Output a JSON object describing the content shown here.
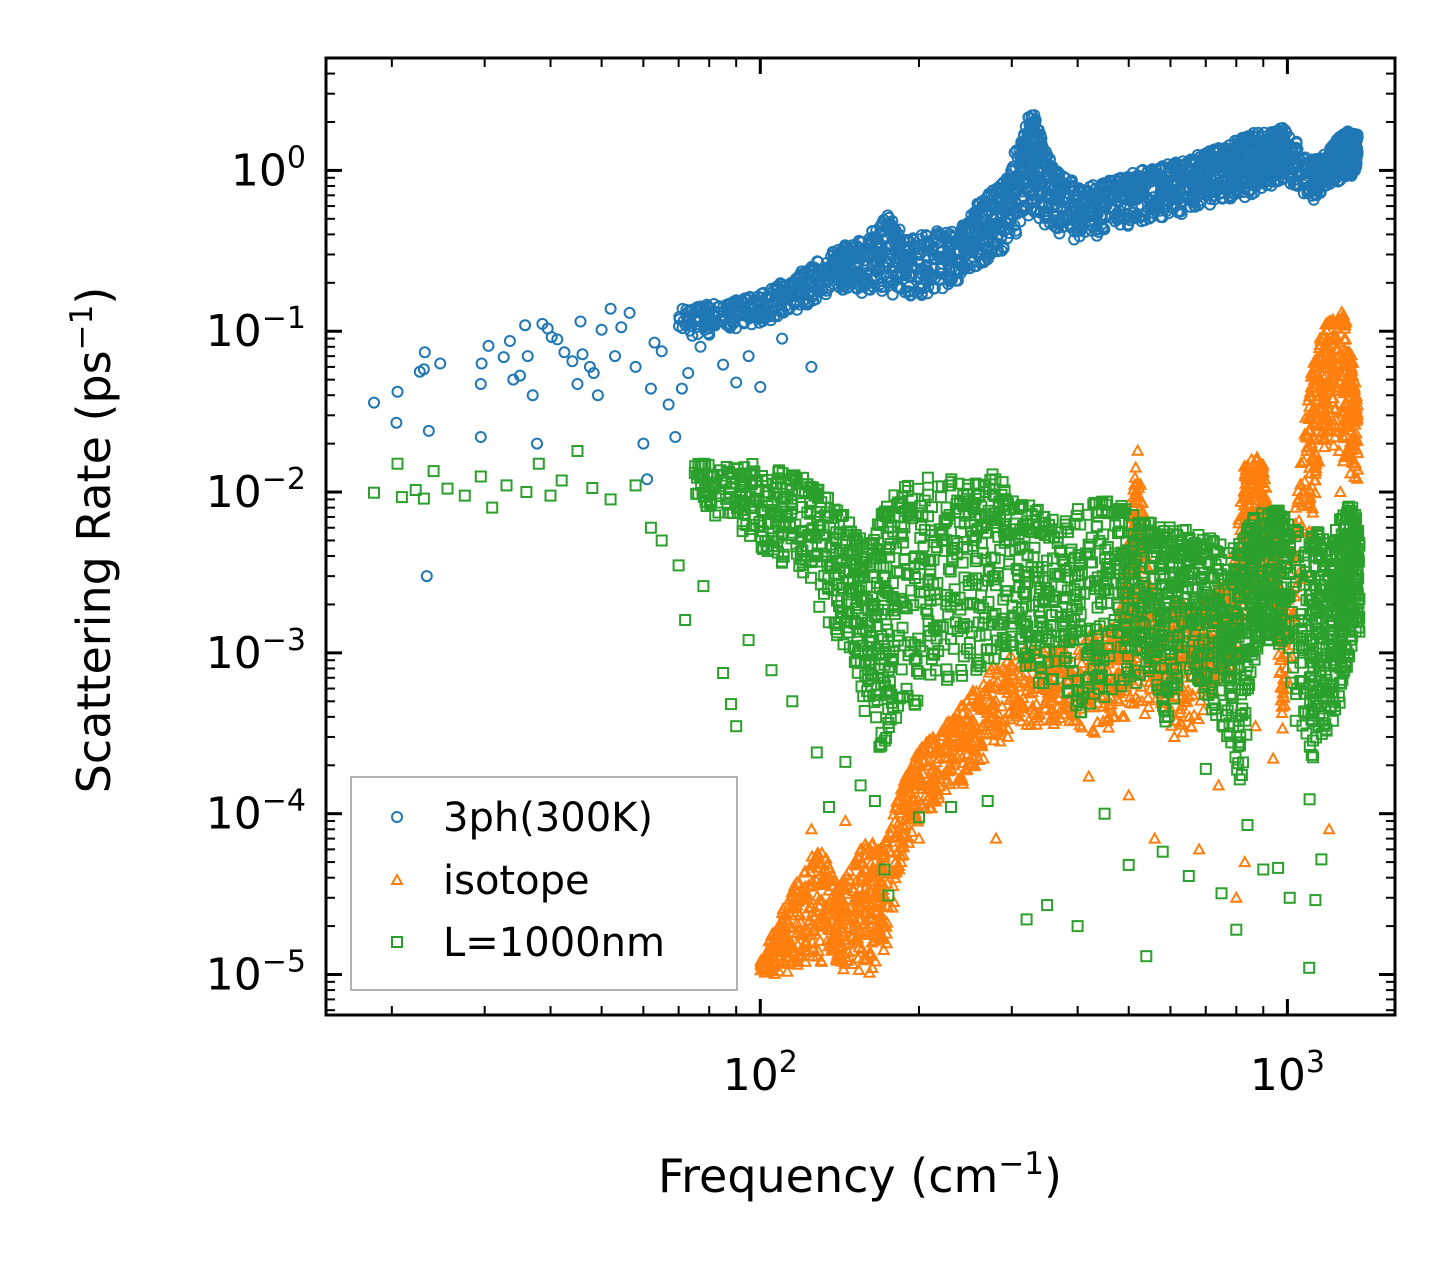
{
  "chart_data": {
    "type": "scatter",
    "title": "",
    "xlabel": "Frequency (cm",
    "xlabel_sup": "−1",
    "xlabel_close": ")",
    "ylabel": "Scattering Rate (ps",
    "ylabel_sup": "−1",
    "ylabel_close": ")",
    "xscale": "log",
    "yscale": "log",
    "xlim": [
      15,
      1600
    ],
    "ylim": [
      5.6e-06,
      5.0
    ],
    "x_ticks": [
      {
        "value": 100,
        "base": "10",
        "exp": "2"
      },
      {
        "value": 1000,
        "base": "10",
        "exp": "3"
      }
    ],
    "y_ticks": [
      {
        "value": 1e-05,
        "base": "10",
        "exp": "−5"
      },
      {
        "value": 0.0001,
        "base": "10",
        "exp": "−4"
      },
      {
        "value": 0.001,
        "base": "10",
        "exp": "−3"
      },
      {
        "value": 0.01,
        "base": "10",
        "exp": "−2"
      },
      {
        "value": 0.1,
        "base": "10",
        "exp": "−1"
      },
      {
        "value": 1,
        "base": "10",
        "exp": "0"
      }
    ],
    "legend_position": "lower-left",
    "series": [
      {
        "name": "3ph(300K)",
        "marker": "circle",
        "color": "#1f77b4",
        "points": [
          [
            18.5,
            0.036
          ],
          [
            20.5,
            0.042
          ],
          [
            20.4,
            0.027
          ],
          [
            22.6,
            0.056
          ],
          [
            23.1,
            0.074
          ],
          [
            23.0,
            0.058
          ],
          [
            23.5,
            0.024
          ],
          [
            24.7,
            0.063
          ],
          [
            29.6,
            0.063
          ],
          [
            29.5,
            0.047
          ],
          [
            29.5,
            0.022
          ],
          [
            30.5,
            0.081
          ],
          [
            32.6,
            0.069
          ],
          [
            33.5,
            0.087
          ],
          [
            34.0,
            0.05
          ],
          [
            35.0,
            0.053
          ],
          [
            35.8,
            0.109
          ],
          [
            36.2,
            0.07
          ],
          [
            37.0,
            0.04
          ],
          [
            37.7,
            0.02
          ],
          [
            38.6,
            0.111
          ],
          [
            39.5,
            0.104
          ],
          [
            40.2,
            0.092
          ],
          [
            41.2,
            0.089
          ],
          [
            42.5,
            0.074
          ],
          [
            44.0,
            0.065
          ],
          [
            45.0,
            0.047
          ],
          [
            45.6,
            0.115
          ],
          [
            46.0,
            0.072
          ],
          [
            47.5,
            0.06
          ],
          [
            48.3,
            0.055
          ],
          [
            49.2,
            0.04
          ],
          [
            50.0,
            0.102
          ],
          [
            52.0,
            0.138
          ],
          [
            53.0,
            0.07
          ],
          [
            54.5,
            0.106
          ],
          [
            56.5,
            0.13
          ],
          [
            58.0,
            0.06
          ],
          [
            60.0,
            0.02
          ],
          [
            61.0,
            0.012
          ],
          [
            62.0,
            0.044
          ],
          [
            63.0,
            0.085
          ],
          [
            65.0,
            0.075
          ],
          [
            67.0,
            0.035
          ],
          [
            69.0,
            0.022
          ],
          [
            71.0,
            0.044
          ],
          [
            73.0,
            0.055
          ],
          [
            77.0,
            0.08
          ],
          [
            80.0,
            0.095
          ],
          [
            85.0,
            0.062
          ],
          [
            90.0,
            0.048
          ],
          [
            95.0,
            0.07
          ],
          [
            100.0,
            0.045
          ],
          [
            110.0,
            0.09
          ],
          [
            125.0,
            0.06
          ],
          [
            23.3,
            0.003
          ]
        ],
        "bands": [
          [
            55,
            0.08,
            0.12
          ],
          [
            70,
            0.09,
            0.14
          ],
          [
            85,
            0.1,
            0.15
          ],
          [
            100,
            0.11,
            0.17
          ],
          [
            115,
            0.13,
            0.22
          ],
          [
            130,
            0.16,
            0.28
          ],
          [
            145,
            0.18,
            0.35
          ],
          [
            160,
            0.17,
            0.4
          ],
          [
            175,
            0.17,
            0.55
          ],
          [
            190,
            0.16,
            0.38
          ],
          [
            210,
            0.17,
            0.42
          ],
          [
            235,
            0.2,
            0.42
          ],
          [
            255,
            0.25,
            0.6
          ],
          [
            275,
            0.28,
            0.75
          ],
          [
            295,
            0.32,
            0.95
          ],
          [
            315,
            0.45,
            1.9
          ],
          [
            330,
            0.55,
            2.4
          ],
          [
            345,
            0.45,
            1.4
          ],
          [
            370,
            0.4,
            0.95
          ],
          [
            410,
            0.35,
            0.8
          ],
          [
            450,
            0.4,
            0.85
          ],
          [
            500,
            0.45,
            0.95
          ],
          [
            550,
            0.5,
            1.05
          ],
          [
            600,
            0.5,
            1.1
          ],
          [
            650,
            0.55,
            1.2
          ],
          [
            700,
            0.6,
            1.3
          ],
          [
            750,
            0.62,
            1.4
          ],
          [
            800,
            0.65,
            1.55
          ],
          [
            850,
            0.7,
            1.7
          ],
          [
            900,
            0.75,
            1.75
          ],
          [
            950,
            0.8,
            1.8
          ],
          [
            990,
            0.85,
            1.85
          ],
          [
            1120,
            0.65,
            1.15
          ],
          [
            1180,
            0.75,
            1.3
          ],
          [
            1250,
            0.85,
            1.6
          ],
          [
            1300,
            0.9,
            1.75
          ],
          [
            1360,
            0.95,
            1.7
          ]
        ]
      },
      {
        "name": "isotope",
        "marker": "triangle",
        "color": "#ff7f0e",
        "points": [
          [
            125,
            8e-05
          ],
          [
            145,
            9e-05
          ],
          [
            155,
            6e-05
          ],
          [
            160,
            4e-05
          ],
          [
            170,
            3e-05
          ],
          [
            185,
            5e-05
          ],
          [
            200,
            7e-05
          ],
          [
            230,
            0.00035
          ],
          [
            265,
            0.00022
          ],
          [
            280,
            7e-05
          ],
          [
            420,
            0.00017
          ],
          [
            480,
            0.0005
          ],
          [
            500,
            0.00013
          ],
          [
            560,
            7e-05
          ],
          [
            610,
            0.0003
          ],
          [
            680,
            6e-05
          ],
          [
            740,
            0.00015
          ],
          [
            800,
            3e-05
          ],
          [
            830,
            5e-05
          ],
          [
            870,
            0.00035
          ],
          [
            940,
            0.00022
          ],
          [
            1090,
            0.019
          ],
          [
            1130,
            0.013
          ],
          [
            1200,
            8e-05
          ],
          [
            1260,
            0.01
          ]
        ],
        "bands": [
          [
            100,
            1e-05,
            1.2e-05
          ],
          [
            110,
            1e-05,
            2.5e-05
          ],
          [
            120,
            1.1e-05,
            4.5e-05
          ],
          [
            130,
            1.2e-05,
            6.5e-05
          ],
          [
            140,
            1.1e-05,
            3.5e-05
          ],
          [
            150,
            1e-05,
            5e-05
          ],
          [
            160,
            1e-05,
            7e-05
          ],
          [
            170,
            1e-05,
            6e-05
          ],
          [
            185,
            5e-05,
            0.00015
          ],
          [
            200,
            9e-05,
            0.00025
          ],
          [
            220,
            0.00012,
            0.00035
          ],
          [
            245,
            0.00015,
            0.0005
          ],
          [
            270,
            0.00025,
            0.0008
          ],
          [
            300,
            0.0003,
            0.001
          ],
          [
            340,
            0.00035,
            0.0011
          ],
          [
            380,
            0.00035,
            0.0012
          ],
          [
            430,
            0.0003,
            0.0013
          ],
          [
            480,
            0.00035,
            0.0016
          ],
          [
            510,
            0.0004,
            0.011
          ],
          [
            520,
            0.0003,
            0.019
          ],
          [
            560,
            0.0005,
            0.0014
          ],
          [
            620,
            0.0003,
            0.0022
          ],
          [
            670,
            0.00035,
            0.0018
          ],
          [
            720,
            0.0005,
            0.0025
          ],
          [
            780,
            0.0007,
            0.0028
          ],
          [
            830,
            0.002,
            0.015
          ],
          [
            860,
            0.0025,
            0.018
          ],
          [
            900,
            0.003,
            0.015
          ],
          [
            940,
            0.004,
            0.006
          ],
          [
            980,
            0.0003,
            0.0015
          ],
          [
            1100,
            0.005,
            0.05
          ],
          [
            1150,
            0.015,
            0.09
          ],
          [
            1200,
            0.02,
            0.13
          ],
          [
            1280,
            0.015,
            0.15
          ],
          [
            1320,
            0.012,
            0.08
          ],
          [
            1360,
            0.01,
            0.04
          ]
        ]
      },
      {
        "name": "L=1000nm",
        "marker": "square",
        "color": "#2ca02c",
        "points": [
          [
            18.5,
            0.0099
          ],
          [
            20.5,
            0.015
          ],
          [
            20.9,
            0.0093
          ],
          [
            22.2,
            0.0103
          ],
          [
            23.0,
            0.0091
          ],
          [
            24.0,
            0.0135
          ],
          [
            25.5,
            0.0105
          ],
          [
            27.5,
            0.0095
          ],
          [
            29.5,
            0.0125
          ],
          [
            31.0,
            0.008
          ],
          [
            33.0,
            0.011
          ],
          [
            36.0,
            0.01
          ],
          [
            38.0,
            0.015
          ],
          [
            40.0,
            0.0095
          ],
          [
            42.0,
            0.0118
          ],
          [
            45.0,
            0.018
          ],
          [
            48.0,
            0.0106
          ],
          [
            52.0,
            0.009
          ],
          [
            58.0,
            0.011
          ],
          [
            62.0,
            0.006
          ],
          [
            65.0,
            0.005
          ],
          [
            70.0,
            0.0035
          ],
          [
            72.0,
            0.0016
          ],
          [
            78.0,
            0.0026
          ],
          [
            85.0,
            0.00075
          ],
          [
            88.0,
            0.00048
          ],
          [
            90.0,
            0.00035
          ],
          [
            95.0,
            0.0012
          ],
          [
            105,
            0.00078
          ],
          [
            115,
            0.0005
          ],
          [
            128,
            0.00024
          ],
          [
            135,
            0.00011
          ],
          [
            145,
            0.00021
          ],
          [
            155,
            0.00015
          ],
          [
            165,
            0.00012
          ],
          [
            172,
            4.5e-05
          ],
          [
            175,
            3.1e-05
          ],
          [
            200,
            9.5e-05
          ],
          [
            230,
            0.00011
          ],
          [
            270,
            0.00012
          ],
          [
            320,
            2.2e-05
          ],
          [
            350,
            2.7e-05
          ],
          [
            400,
            2e-05
          ],
          [
            450,
            0.0001
          ],
          [
            500,
            4.8e-05
          ],
          [
            540,
            1.3e-05
          ],
          [
            580,
            5.8e-05
          ],
          [
            650,
            4.1e-05
          ],
          [
            700,
            0.00019
          ],
          [
            750,
            3.2e-05
          ],
          [
            800,
            1.9e-05
          ],
          [
            840,
            8.5e-05
          ],
          [
            900,
            4.5e-05
          ],
          [
            960,
            4.6e-05
          ],
          [
            1010,
            3e-05
          ],
          [
            1100,
            1.1e-05
          ],
          [
            1130,
            2.9e-05
          ],
          [
            1160,
            5.2e-05
          ]
        ],
        "bands": [
          [
            60,
            0.0085,
            0.0135
          ],
          [
            75,
            0.0075,
            0.015
          ],
          [
            90,
            0.006,
            0.016
          ],
          [
            105,
            0.004,
            0.014
          ],
          [
            120,
            0.003,
            0.013
          ],
          [
            135,
            0.0015,
            0.01
          ],
          [
            150,
            0.0009,
            0.006
          ],
          [
            160,
            0.0003,
            0.005
          ],
          [
            170,
            0.00025,
            0.0075
          ],
          [
            180,
            0.0003,
            0.011
          ],
          [
            200,
            0.0005,
            0.0125
          ],
          [
            225,
            0.0006,
            0.013
          ],
          [
            250,
            0.0007,
            0.012
          ],
          [
            275,
            0.0008,
            0.014
          ],
          [
            300,
            0.0009,
            0.01
          ],
          [
            330,
            0.0007,
            0.008
          ],
          [
            360,
            0.0005,
            0.007
          ],
          [
            400,
            0.0004,
            0.008
          ],
          [
            440,
            0.0005,
            0.009
          ],
          [
            480,
            0.0006,
            0.0085
          ],
          [
            520,
            0.0005,
            0.007
          ],
          [
            560,
            0.0007,
            0.0065
          ],
          [
            590,
            0.0003,
            0.0065
          ],
          [
            630,
            0.0008,
            0.006
          ],
          [
            680,
            0.0006,
            0.0055
          ],
          [
            730,
            0.0004,
            0.005
          ],
          [
            780,
            0.00025,
            0.0045
          ],
          [
            820,
            0.00012,
            0.005
          ],
          [
            860,
            0.0008,
            0.007
          ],
          [
            900,
            0.001,
            0.0075
          ],
          [
            950,
            0.0012,
            0.008
          ],
          [
            990,
            0.001,
            0.007
          ],
          [
            1100,
            0.0001,
            0.005
          ],
          [
            1140,
            0.0003,
            0.006
          ],
          [
            1200,
            0.0003,
            0.0045
          ],
          [
            1250,
            0.0004,
            0.007
          ],
          [
            1290,
            0.0007,
            0.009
          ],
          [
            1330,
            0.001,
            0.008
          ],
          [
            1370,
            0.0012,
            0.006
          ]
        ]
      }
    ]
  }
}
